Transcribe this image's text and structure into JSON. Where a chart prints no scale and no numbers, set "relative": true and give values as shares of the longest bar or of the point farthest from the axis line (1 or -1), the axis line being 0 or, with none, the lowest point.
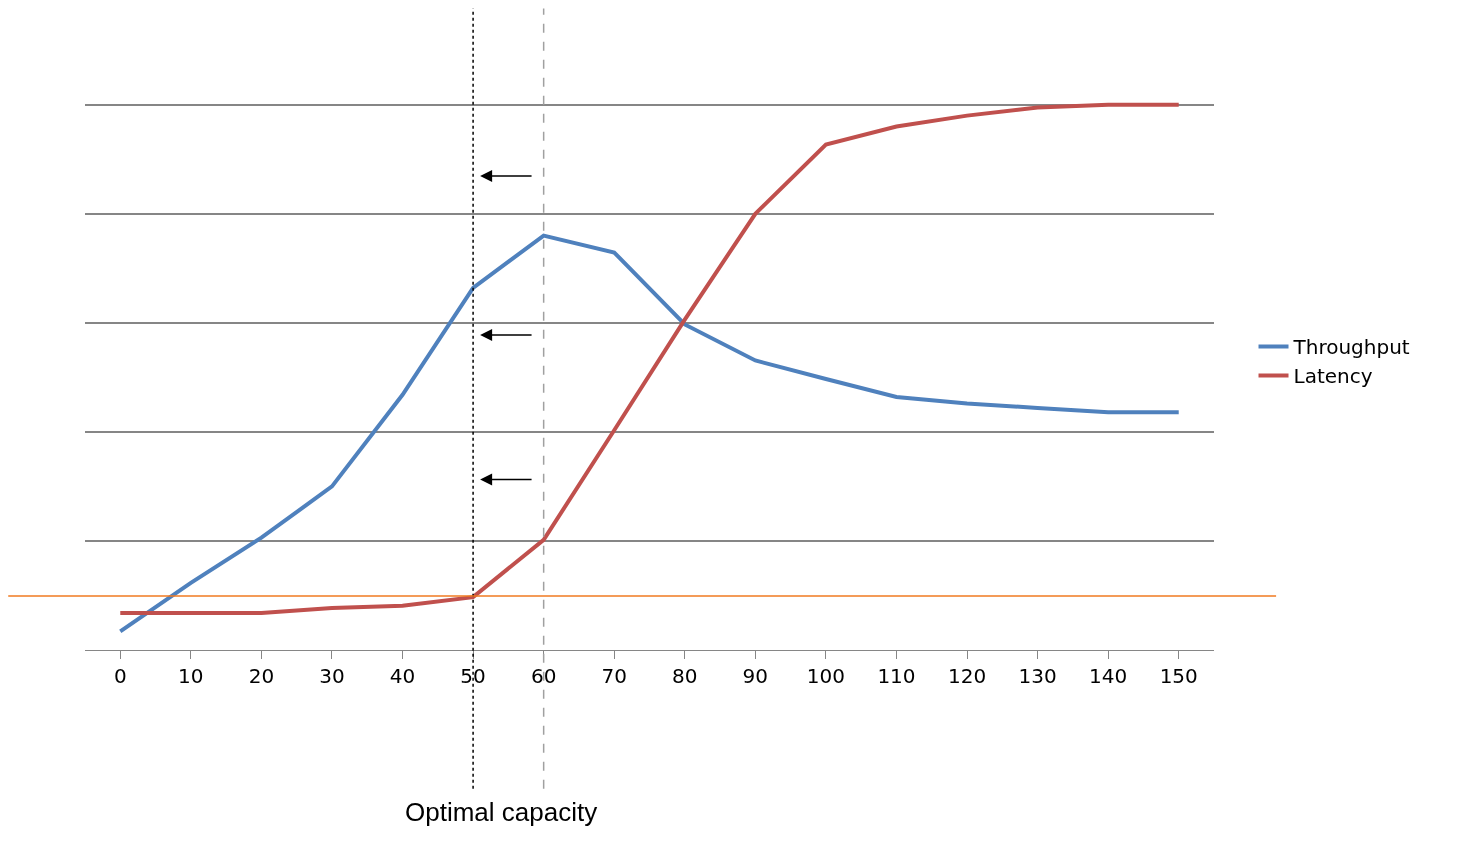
{
  "chart_data": {
    "type": "line",
    "relative": true,
    "categories": [
      "0",
      "10",
      "20",
      "30",
      "40",
      "50",
      "60",
      "70",
      "80",
      "90",
      "100",
      "110",
      "120",
      "130",
      "140",
      "150"
    ],
    "series": [
      {
        "name": "Throughput",
        "color": "#4f81bd",
        "values": [
          0.034,
          0.123,
          0.206,
          0.3,
          0.468,
          0.664,
          0.76,
          0.729,
          0.597,
          0.531,
          0.497,
          0.464,
          0.452,
          0.444,
          0.436,
          0.436
        ]
      },
      {
        "name": "Latency",
        "color": "#c0504d",
        "values": [
          0.068,
          0.068,
          0.068,
          0.077,
          0.081,
          0.097,
          0.202,
          0.403,
          0.606,
          0.8,
          0.927,
          0.96,
          0.98,
          0.995,
          1,
          1
        ]
      }
    ],
    "ref_lines": [
      {
        "axis": "x",
        "value": "50",
        "color": "#000000",
        "line_style": "dotted"
      },
      {
        "axis": "x",
        "value": "60",
        "color": "#a0a0a0",
        "line_style": "dashed"
      },
      {
        "axis": "y",
        "value": 0.099,
        "color": "#f07a20",
        "line_style": "solid"
      }
    ],
    "annotations": [
      "Optimal capacity"
    ],
    "grid": "y",
    "legend": "right",
    "marker": "none",
    "line_style": "solid"
  }
}
